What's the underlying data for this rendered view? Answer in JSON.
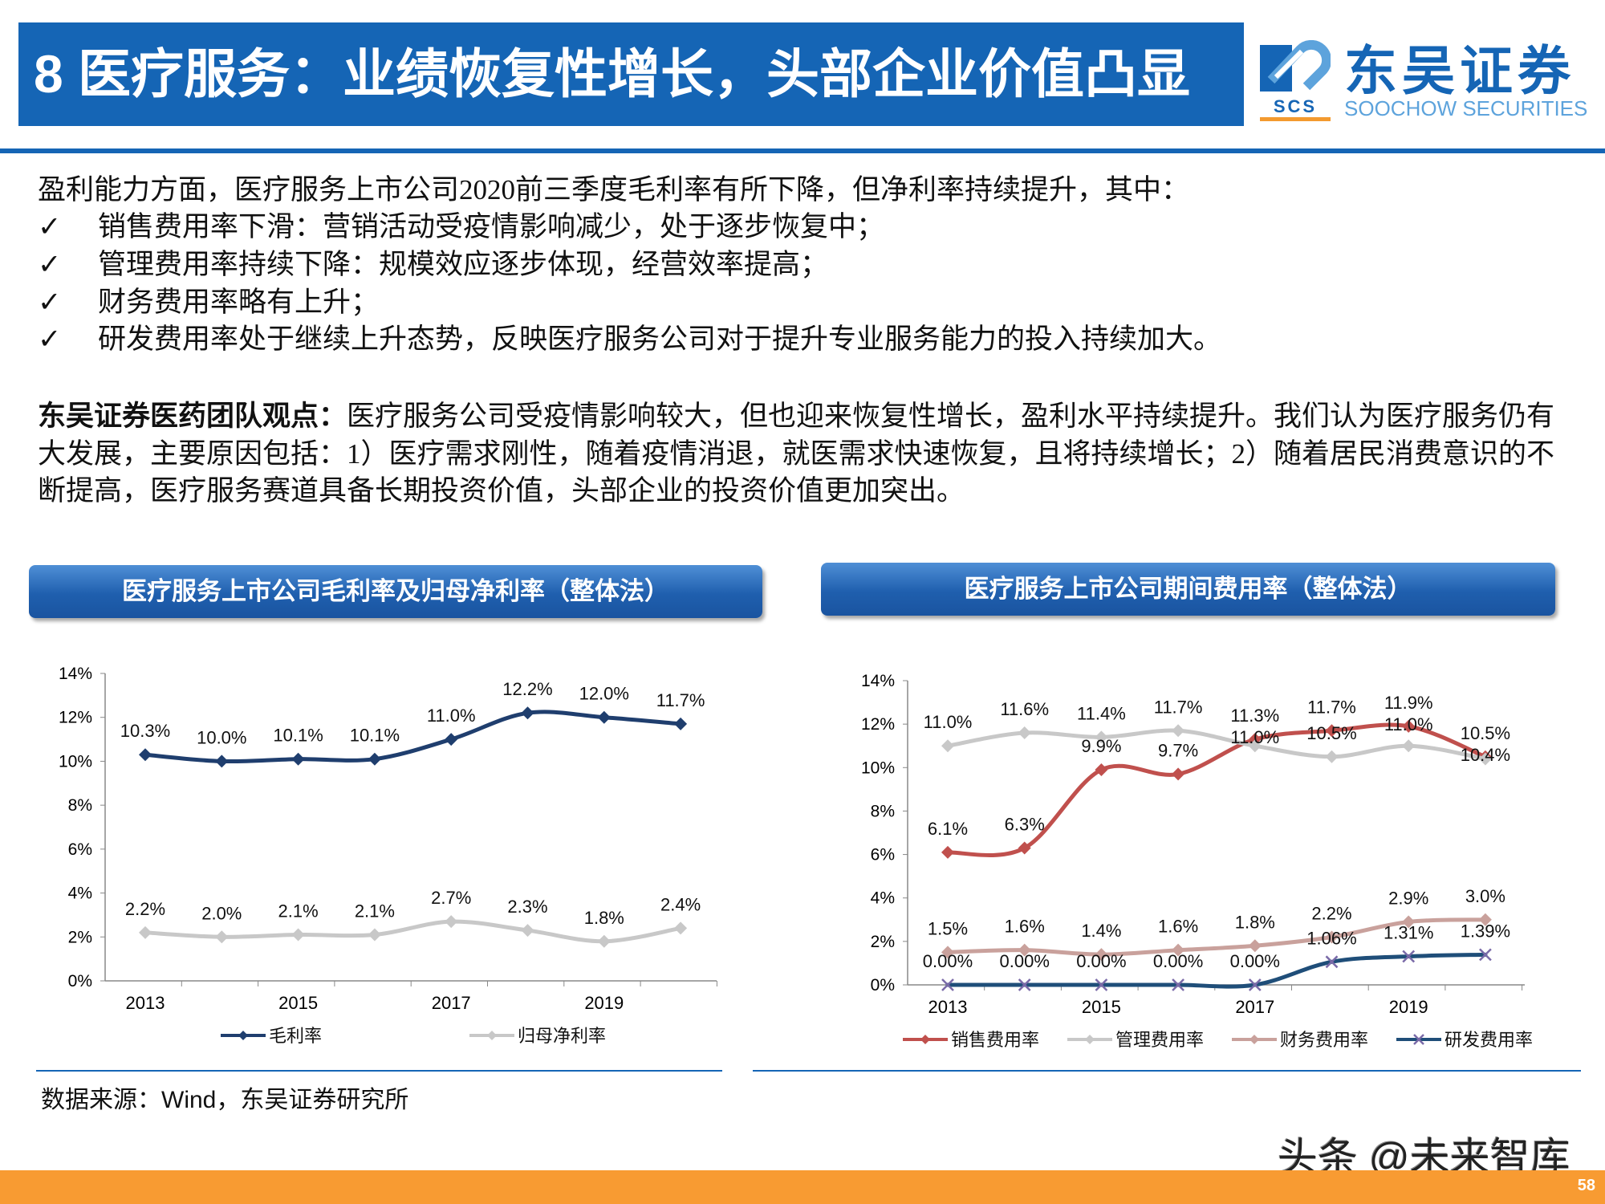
{
  "header": {
    "title": "8 医疗服务：业绩恢复性增长，头部企业价值凸显",
    "logo_cn": "东吴证券",
    "logo_en": "SOOCHOW SECURITIES",
    "logo_abbr": "SCS"
  },
  "body": {
    "intro": "盈利能力方面，医疗服务上市公司2020前三季度毛利率有所下降，但净利率持续提升，其中：",
    "check_symbol": "✓",
    "bullets": [
      "销售费用率下滑：营销活动受疫情影响减少，处于逐步恢复中；",
      "管理费用率持续下降：规模效应逐步体现，经营效率提高；",
      "财务费用率略有上升；",
      "研发费用率处于继续上升态势，反映医疗服务公司对于提升专业服务能力的投入持续加大。"
    ],
    "opinion_label": "东吴证券医药团队观点：",
    "opinion_text": "医疗服务公司受疫情影响较大，但也迎来恢复性增长，盈利水平持续提升。我们认为医疗服务仍有大发展，主要原因包括：1）医疗需求刚性，随着疫情消退，就医需求快速恢复，且将持续增长；2）随着居民消费意识的不断提高，医疗服务赛道具备长期投资价值，头部企业的投资价值更加突出。"
  },
  "chart_data": [
    {
      "type": "line",
      "title": "医疗服务上市公司毛利率及归母净利率（整体法）",
      "categories": [
        "2013",
        "2014",
        "2015",
        "2016",
        "2017",
        "2018",
        "2019",
        "2020"
      ],
      "tick_labels": [
        "2013",
        "",
        "2015",
        "",
        "2017",
        "",
        "2019",
        ""
      ],
      "yticks": [
        "0%",
        "2%",
        "4%",
        "6%",
        "8%",
        "10%",
        "12%",
        "14%"
      ],
      "ylim": [
        0,
        14
      ],
      "unit": "%",
      "legend": "bottom",
      "series": [
        {
          "name": "毛利率",
          "color": "#1f3e6e",
          "marker": "diamond",
          "values": [
            10.3,
            10.0,
            10.1,
            10.1,
            11.0,
            12.2,
            12.0,
            11.7
          ],
          "labels": [
            "10.3%",
            "10.0%",
            "10.1%",
            "10.1%",
            "11.0%",
            "12.2%",
            "12.0%",
            "11.7%"
          ]
        },
        {
          "name": "归母净利率",
          "color": "#c8c8c8",
          "marker": "diamond",
          "values": [
            2.2,
            2.0,
            2.1,
            2.1,
            2.7,
            2.3,
            1.8,
            2.4
          ],
          "labels": [
            "2.2%",
            "2.0%",
            "2.1%",
            "2.1%",
            "2.7%",
            "2.3%",
            "1.8%",
            "2.4%"
          ]
        }
      ]
    },
    {
      "type": "line",
      "title": "医疗服务上市公司期间费用率（整体法）",
      "categories": [
        "2013",
        "2014",
        "2015",
        "2016",
        "2017",
        "2018",
        "2019",
        "2020"
      ],
      "tick_labels": [
        "2013",
        "",
        "2015",
        "",
        "2017",
        "",
        "2019",
        ""
      ],
      "yticks": [
        "0%",
        "2%",
        "4%",
        "6%",
        "8%",
        "10%",
        "12%",
        "14%"
      ],
      "ylim": [
        0,
        14
      ],
      "unit": "%",
      "legend": "bottom",
      "series": [
        {
          "name": "销售费用率",
          "color": "#c0504d",
          "marker": "diamond",
          "values": [
            6.1,
            6.3,
            9.9,
            9.7,
            11.3,
            11.7,
            11.9,
            10.5
          ],
          "labels": [
            "6.1%",
            "6.3%",
            "9.9%",
            "9.7%",
            "11.3%",
            "11.7%",
            "11.9%",
            "10.5%"
          ]
        },
        {
          "name": "管理费用率",
          "color": "#c8c8c8",
          "marker": "diamond",
          "values": [
            11.0,
            11.6,
            11.4,
            11.7,
            11.0,
            10.5,
            11.0,
            10.4
          ],
          "labels": [
            "11.0%",
            "11.6%",
            "11.4%",
            "11.7%",
            "11.0%",
            "10.5%",
            "11.0%",
            "10.4%"
          ]
        },
        {
          "name": "财务费用率",
          "color": "#c9a19c",
          "marker": "diamond",
          "values": [
            1.5,
            1.6,
            1.4,
            1.6,
            1.8,
            2.2,
            2.9,
            3.0
          ],
          "labels": [
            "1.5%",
            "1.6%",
            "1.4%",
            "1.6%",
            "1.8%",
            "2.2%",
            "2.9%",
            "3.0%"
          ]
        },
        {
          "name": "研发费用率",
          "color": "#1f4e79",
          "marker": "x",
          "marker_color": "#7a6aa8",
          "values": [
            0,
            0,
            0,
            0,
            0,
            1.06,
            1.31,
            1.39
          ],
          "labels": [
            "0.00%",
            "0.00%",
            "0.00%",
            "0.00%",
            "0.00%",
            "1.06%",
            "1.31%",
            "1.39%"
          ]
        }
      ]
    }
  ],
  "source": "数据来源：Wind，东吴证券研究所",
  "watermark": "头条 @未来智库",
  "page_number": "58",
  "colors": {
    "brand_blue": "#1565b5",
    "footer_orange": "#f89b32"
  }
}
